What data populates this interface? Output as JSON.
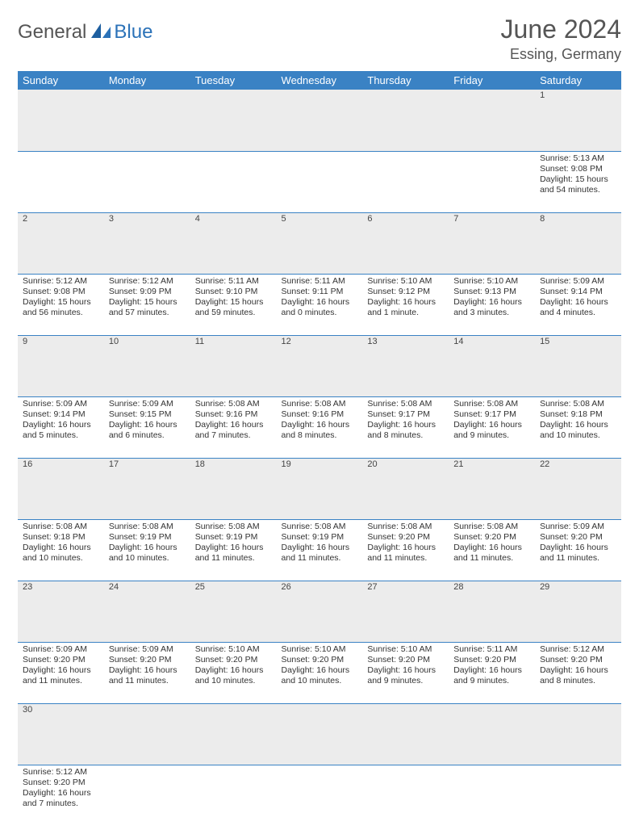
{
  "brand": {
    "part1": "General",
    "part2": "Blue"
  },
  "title": "June 2024",
  "location": "Essing, Germany",
  "colors": {
    "header_bg": "#3a82c4",
    "header_text": "#ffffff",
    "daynum_bg": "#ececec",
    "rule": "#3a82c4",
    "brand_gray": "#555555",
    "brand_blue": "#2b72b8",
    "text": "#333333",
    "page_bg": "#ffffff"
  },
  "typography": {
    "title_fontsize": 32,
    "location_fontsize": 18,
    "dayheader_fontsize": 13,
    "daynum_fontsize": 11,
    "cell_fontsize": 10.5
  },
  "calendar": {
    "type": "table",
    "columns": [
      "Sunday",
      "Monday",
      "Tuesday",
      "Wednesday",
      "Thursday",
      "Friday",
      "Saturday"
    ],
    "weeks": [
      [
        null,
        null,
        null,
        null,
        null,
        null,
        {
          "d": "1",
          "sr": "5:13 AM",
          "ss": "9:08 PM",
          "dl": "15 hours and 54 minutes."
        }
      ],
      [
        {
          "d": "2",
          "sr": "5:12 AM",
          "ss": "9:08 PM",
          "dl": "15 hours and 56 minutes."
        },
        {
          "d": "3",
          "sr": "5:12 AM",
          "ss": "9:09 PM",
          "dl": "15 hours and 57 minutes."
        },
        {
          "d": "4",
          "sr": "5:11 AM",
          "ss": "9:10 PM",
          "dl": "15 hours and 59 minutes."
        },
        {
          "d": "5",
          "sr": "5:11 AM",
          "ss": "9:11 PM",
          "dl": "16 hours and 0 minutes."
        },
        {
          "d": "6",
          "sr": "5:10 AM",
          "ss": "9:12 PM",
          "dl": "16 hours and 1 minute."
        },
        {
          "d": "7",
          "sr": "5:10 AM",
          "ss": "9:13 PM",
          "dl": "16 hours and 3 minutes."
        },
        {
          "d": "8",
          "sr": "5:09 AM",
          "ss": "9:14 PM",
          "dl": "16 hours and 4 minutes."
        }
      ],
      [
        {
          "d": "9",
          "sr": "5:09 AM",
          "ss": "9:14 PM",
          "dl": "16 hours and 5 minutes."
        },
        {
          "d": "10",
          "sr": "5:09 AM",
          "ss": "9:15 PM",
          "dl": "16 hours and 6 minutes."
        },
        {
          "d": "11",
          "sr": "5:08 AM",
          "ss": "9:16 PM",
          "dl": "16 hours and 7 minutes."
        },
        {
          "d": "12",
          "sr": "5:08 AM",
          "ss": "9:16 PM",
          "dl": "16 hours and 8 minutes."
        },
        {
          "d": "13",
          "sr": "5:08 AM",
          "ss": "9:17 PM",
          "dl": "16 hours and 8 minutes."
        },
        {
          "d": "14",
          "sr": "5:08 AM",
          "ss": "9:17 PM",
          "dl": "16 hours and 9 minutes."
        },
        {
          "d": "15",
          "sr": "5:08 AM",
          "ss": "9:18 PM",
          "dl": "16 hours and 10 minutes."
        }
      ],
      [
        {
          "d": "16",
          "sr": "5:08 AM",
          "ss": "9:18 PM",
          "dl": "16 hours and 10 minutes."
        },
        {
          "d": "17",
          "sr": "5:08 AM",
          "ss": "9:19 PM",
          "dl": "16 hours and 10 minutes."
        },
        {
          "d": "18",
          "sr": "5:08 AM",
          "ss": "9:19 PM",
          "dl": "16 hours and 11 minutes."
        },
        {
          "d": "19",
          "sr": "5:08 AM",
          "ss": "9:19 PM",
          "dl": "16 hours and 11 minutes."
        },
        {
          "d": "20",
          "sr": "5:08 AM",
          "ss": "9:20 PM",
          "dl": "16 hours and 11 minutes."
        },
        {
          "d": "21",
          "sr": "5:08 AM",
          "ss": "9:20 PM",
          "dl": "16 hours and 11 minutes."
        },
        {
          "d": "22",
          "sr": "5:09 AM",
          "ss": "9:20 PM",
          "dl": "16 hours and 11 minutes."
        }
      ],
      [
        {
          "d": "23",
          "sr": "5:09 AM",
          "ss": "9:20 PM",
          "dl": "16 hours and 11 minutes."
        },
        {
          "d": "24",
          "sr": "5:09 AM",
          "ss": "9:20 PM",
          "dl": "16 hours and 11 minutes."
        },
        {
          "d": "25",
          "sr": "5:10 AM",
          "ss": "9:20 PM",
          "dl": "16 hours and 10 minutes."
        },
        {
          "d": "26",
          "sr": "5:10 AM",
          "ss": "9:20 PM",
          "dl": "16 hours and 10 minutes."
        },
        {
          "d": "27",
          "sr": "5:10 AM",
          "ss": "9:20 PM",
          "dl": "16 hours and 9 minutes."
        },
        {
          "d": "28",
          "sr": "5:11 AM",
          "ss": "9:20 PM",
          "dl": "16 hours and 9 minutes."
        },
        {
          "d": "29",
          "sr": "5:12 AM",
          "ss": "9:20 PM",
          "dl": "16 hours and 8 minutes."
        }
      ],
      [
        {
          "d": "30",
          "sr": "5:12 AM",
          "ss": "9:20 PM",
          "dl": "16 hours and 7 minutes."
        },
        null,
        null,
        null,
        null,
        null,
        null
      ]
    ]
  },
  "labels": {
    "sunrise": "Sunrise:",
    "sunset": "Sunset:",
    "daylight": "Daylight:"
  }
}
